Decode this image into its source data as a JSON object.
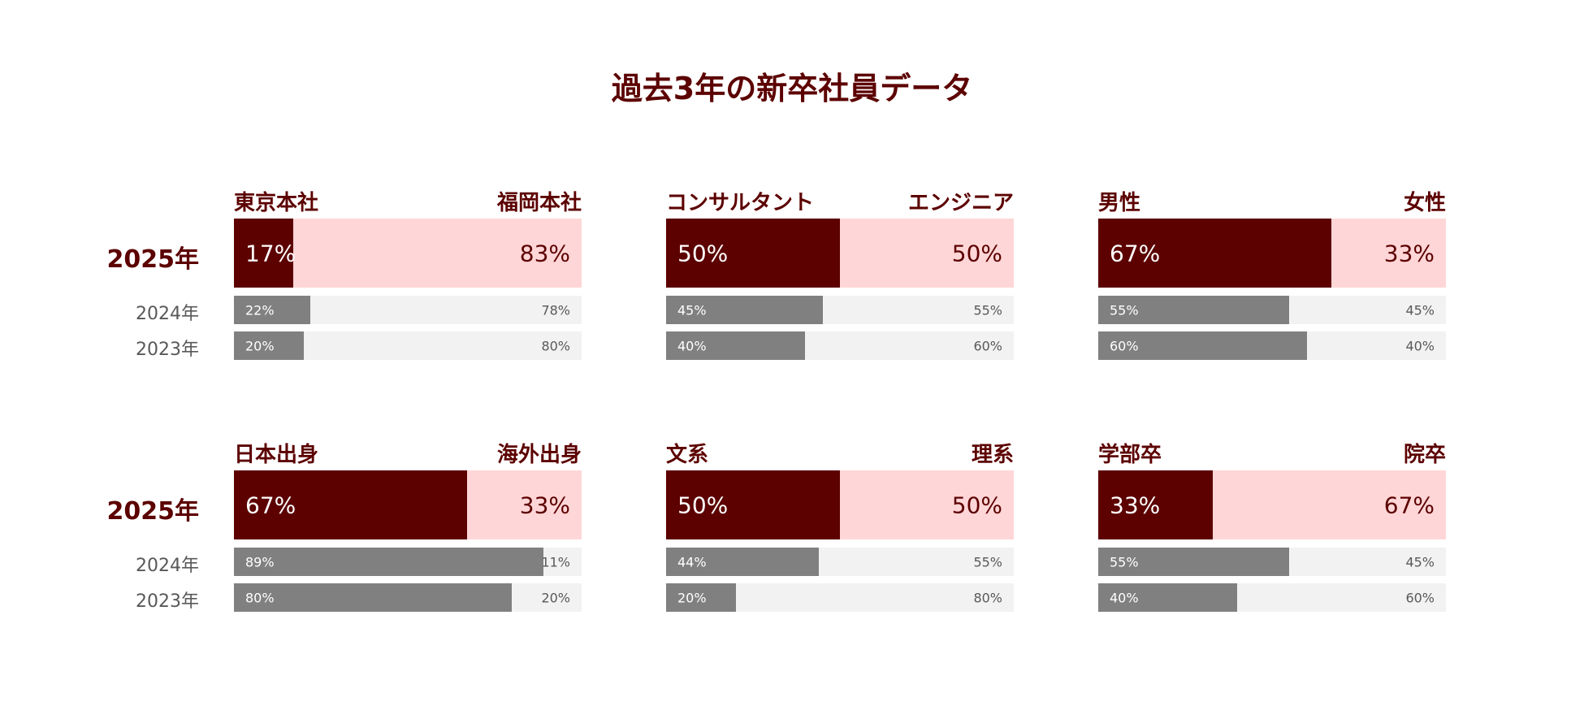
{
  "title": "過去3年の新卒社員データ",
  "colors": {
    "current_left": "#5c0000",
    "current_right": "#ffd6d7",
    "past_left": "#808080",
    "past_right": "#f2f2f2",
    "text_accent": "#5c0000"
  },
  "rows": [
    {
      "year_main": "2025年",
      "year_prev1": "2024年",
      "year_prev2": "2023年"
    },
    {
      "year_main": "2025年",
      "year_prev1": "2024年",
      "year_prev2": "2023年"
    }
  ],
  "chart_data": [
    {
      "type": "bar",
      "stacked": true,
      "orientation": "horizontal",
      "left_label": "東京本社",
      "right_label": "福岡本社",
      "categories": [
        "2025年",
        "2024年",
        "2023年"
      ],
      "left_values": [
        17,
        22,
        20
      ],
      "right_values": [
        83,
        78,
        80
      ],
      "left_texts": [
        "17%",
        "22%",
        "20%"
      ],
      "right_texts": [
        "83%",
        "78%",
        "80%"
      ]
    },
    {
      "type": "bar",
      "stacked": true,
      "orientation": "horizontal",
      "left_label": "コンサルタント",
      "right_label": "エンジニア",
      "categories": [
        "2025年",
        "2024年",
        "2023年"
      ],
      "left_values": [
        50,
        45,
        40
      ],
      "right_values": [
        50,
        55,
        60
      ],
      "left_texts": [
        "50%",
        "45%",
        "40%"
      ],
      "right_texts": [
        "50%",
        "55%",
        "60%"
      ]
    },
    {
      "type": "bar",
      "stacked": true,
      "orientation": "horizontal",
      "left_label": "男性",
      "right_label": "女性",
      "categories": [
        "2025年",
        "2024年",
        "2023年"
      ],
      "left_values": [
        67,
        55,
        60
      ],
      "right_values": [
        33,
        45,
        40
      ],
      "left_texts": [
        "67%",
        "55%",
        "60%"
      ],
      "right_texts": [
        "33%",
        "45%",
        "40%"
      ]
    },
    {
      "type": "bar",
      "stacked": true,
      "orientation": "horizontal",
      "left_label": "日本出身",
      "right_label": "海外出身",
      "categories": [
        "2025年",
        "2024年",
        "2023年"
      ],
      "left_values": [
        67,
        89,
        80
      ],
      "right_values": [
        33,
        11,
        20
      ],
      "left_texts": [
        "67%",
        "89%",
        "80%"
      ],
      "right_texts": [
        "33%",
        "11%",
        "20%"
      ]
    },
    {
      "type": "bar",
      "stacked": true,
      "orientation": "horizontal",
      "left_label": "文系",
      "right_label": "理系",
      "categories": [
        "2025年",
        "2024年",
        "2023年"
      ],
      "left_values": [
        50,
        44,
        20
      ],
      "right_values": [
        50,
        55,
        80
      ],
      "left_texts": [
        "50%",
        "44%",
        "20%"
      ],
      "right_texts": [
        "50%",
        "55%",
        "80%"
      ]
    },
    {
      "type": "bar",
      "stacked": true,
      "orientation": "horizontal",
      "left_label": "学部卒",
      "right_label": "院卒",
      "categories": [
        "2025年",
        "2024年",
        "2023年"
      ],
      "left_values": [
        33,
        55,
        40
      ],
      "right_values": [
        67,
        45,
        60
      ],
      "left_texts": [
        "33%",
        "55%",
        "40%"
      ],
      "right_texts": [
        "67%",
        "45%",
        "60%"
      ]
    }
  ]
}
